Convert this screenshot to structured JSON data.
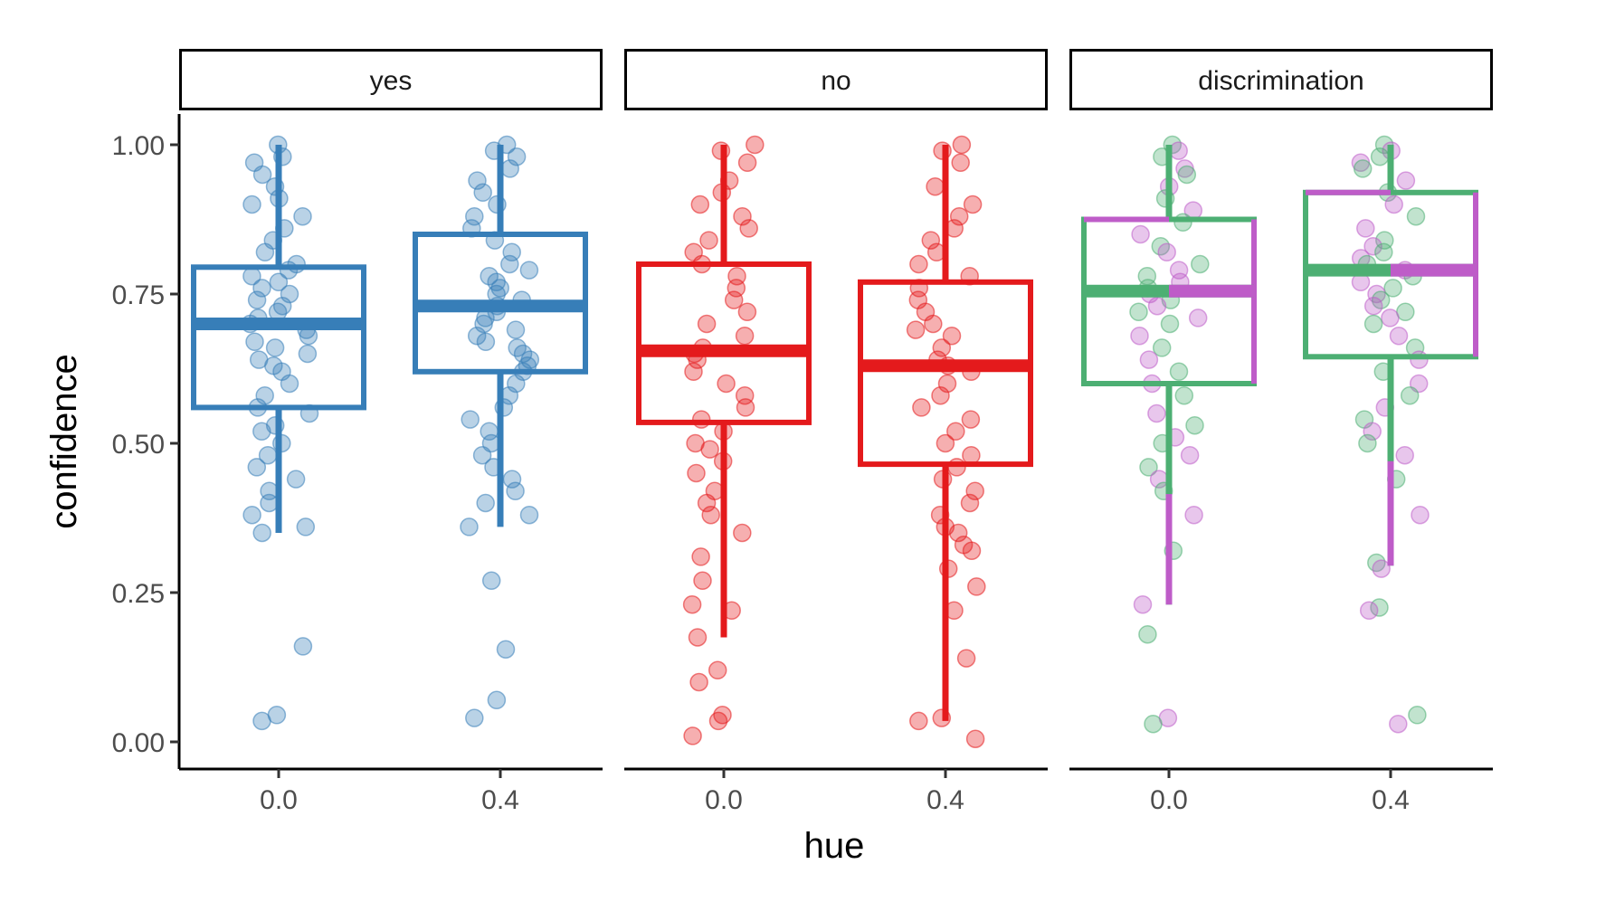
{
  "chart_data": {
    "type": "box",
    "xlabel": "hue",
    "ylabel": "confidence",
    "ylim": [
      -0.05,
      1.05
    ],
    "y_ticks": [
      "0.00",
      "0.25",
      "0.50",
      "0.75",
      "1.00"
    ],
    "y_tick_values": [
      0,
      0.25,
      0.5,
      0.75,
      1.0
    ],
    "categories": [
      "0.0",
      "0.4"
    ],
    "grid": false,
    "legend": "none",
    "panels": [
      {
        "label": "yes",
        "color": "#377EB8",
        "boxes": [
          {
            "x": "0.0",
            "q1": 0.56,
            "median": 0.7,
            "q3": 0.795,
            "lower": 0.35,
            "upper": 1.0
          },
          {
            "x": "0.4",
            "q1": 0.62,
            "median": 0.73,
            "q3": 0.85,
            "lower": 0.36,
            "upper": 1.0
          }
        ],
        "points": [
          {
            "x": "0.0",
            "y": [
              1.0,
              0.98,
              0.97,
              0.95,
              0.93,
              0.91,
              0.9,
              0.88,
              0.86,
              0.84,
              0.82,
              0.8,
              0.79,
              0.78,
              0.77,
              0.76,
              0.75,
              0.74,
              0.73,
              0.72,
              0.71,
              0.7,
              0.69,
              0.68,
              0.67,
              0.66,
              0.65,
              0.64,
              0.63,
              0.62,
              0.6,
              0.58,
              0.56,
              0.55,
              0.53,
              0.52,
              0.5,
              0.48,
              0.46,
              0.44,
              0.42,
              0.4,
              0.38,
              0.36,
              0.35,
              0.16,
              0.045,
              0.035
            ]
          },
          {
            "x": "0.4",
            "y": [
              1.0,
              0.99,
              0.98,
              0.96,
              0.94,
              0.92,
              0.9,
              0.88,
              0.86,
              0.84,
              0.82,
              0.8,
              0.79,
              0.78,
              0.77,
              0.76,
              0.75,
              0.74,
              0.73,
              0.72,
              0.71,
              0.7,
              0.69,
              0.68,
              0.67,
              0.66,
              0.65,
              0.64,
              0.63,
              0.62,
              0.6,
              0.58,
              0.56,
              0.54,
              0.52,
              0.5,
              0.48,
              0.46,
              0.44,
              0.42,
              0.4,
              0.38,
              0.36,
              0.27,
              0.155,
              0.07,
              0.04
            ]
          }
        ]
      },
      {
        "label": "no",
        "color": "#E41A1C",
        "boxes": [
          {
            "x": "0.0",
            "q1": 0.535,
            "median": 0.655,
            "q3": 0.8,
            "lower": 0.175,
            "upper": 1.0
          },
          {
            "x": "0.4",
            "q1": 0.465,
            "median": 0.63,
            "q3": 0.77,
            "lower": 0.035,
            "upper": 1.0
          }
        ],
        "points": [
          {
            "x": "0.0",
            "y": [
              1.0,
              0.99,
              0.97,
              0.94,
              0.92,
              0.9,
              0.88,
              0.86,
              0.84,
              0.82,
              0.8,
              0.78,
              0.76,
              0.74,
              0.72,
              0.7,
              0.68,
              0.66,
              0.65,
              0.64,
              0.62,
              0.6,
              0.58,
              0.56,
              0.54,
              0.52,
              0.5,
              0.49,
              0.47,
              0.45,
              0.42,
              0.4,
              0.38,
              0.35,
              0.31,
              0.27,
              0.23,
              0.22,
              0.175,
              0.12,
              0.1,
              0.045,
              0.035,
              0.01
            ]
          },
          {
            "x": "0.4",
            "y": [
              1.0,
              0.99,
              0.97,
              0.93,
              0.9,
              0.88,
              0.86,
              0.84,
              0.82,
              0.8,
              0.78,
              0.76,
              0.74,
              0.72,
              0.7,
              0.69,
              0.68,
              0.66,
              0.64,
              0.63,
              0.62,
              0.6,
              0.58,
              0.56,
              0.54,
              0.52,
              0.5,
              0.48,
              0.46,
              0.44,
              0.42,
              0.4,
              0.38,
              0.36,
              0.35,
              0.33,
              0.32,
              0.29,
              0.26,
              0.22,
              0.14,
              0.04,
              0.035,
              0.005
            ]
          }
        ]
      },
      {
        "label": "discrimination",
        "colors": [
          "#4DAF73",
          "#BE5CC8"
        ],
        "boxes": [
          {
            "x": "0.0",
            "q1": 0.6,
            "median": 0.755,
            "q3": 0.875,
            "lower": 0.23,
            "upper": 1.0
          },
          {
            "x": "0.4",
            "q1": 0.645,
            "median": 0.79,
            "q3": 0.92,
            "lower": 0.295,
            "upper": 1.0
          }
        ],
        "points": [
          {
            "x": "0.0",
            "y": [
              1.0,
              0.99,
              0.98,
              0.96,
              0.95,
              0.93,
              0.91,
              0.89,
              0.87,
              0.85,
              0.83,
              0.82,
              0.8,
              0.79,
              0.78,
              0.77,
              0.76,
              0.75,
              0.74,
              0.73,
              0.72,
              0.71,
              0.7,
              0.68,
              0.66,
              0.64,
              0.62,
              0.6,
              0.58,
              0.55,
              0.53,
              0.51,
              0.5,
              0.48,
              0.46,
              0.44,
              0.42,
              0.38,
              0.32,
              0.23,
              0.18,
              0.04,
              0.03
            ]
          },
          {
            "x": "0.4",
            "y": [
              1.0,
              0.99,
              0.98,
              0.97,
              0.96,
              0.94,
              0.92,
              0.9,
              0.88,
              0.86,
              0.84,
              0.83,
              0.82,
              0.81,
              0.8,
              0.79,
              0.78,
              0.77,
              0.76,
              0.75,
              0.74,
              0.73,
              0.72,
              0.71,
              0.7,
              0.68,
              0.66,
              0.64,
              0.62,
              0.6,
              0.58,
              0.56,
              0.54,
              0.52,
              0.5,
              0.48,
              0.44,
              0.38,
              0.3,
              0.29,
              0.225,
              0.22,
              0.045,
              0.03
            ]
          }
        ]
      }
    ]
  }
}
